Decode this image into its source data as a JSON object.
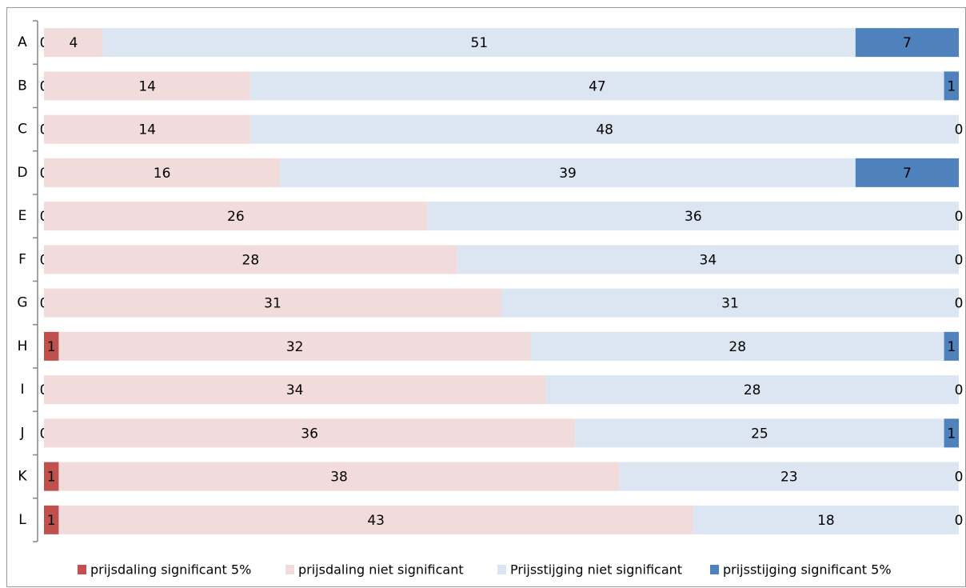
{
  "chart_data": {
    "type": "stacked-bar-horizontal",
    "categories": [
      "A",
      "B",
      "C",
      "D",
      "E",
      "F",
      "G",
      "H",
      "I",
      "J",
      "K",
      "L"
    ],
    "series": [
      {
        "name": "prijsdaling significant 5%",
        "color": "#c0504d",
        "values": [
          0,
          0,
          0,
          0,
          0,
          0,
          0,
          1,
          0,
          0,
          1,
          1
        ]
      },
      {
        "name": "prijsdaling niet significant",
        "color": "#f2dcdb",
        "values": [
          4,
          14,
          14,
          16,
          26,
          28,
          31,
          32,
          34,
          36,
          38,
          43
        ]
      },
      {
        "name": "Prijsstijging niet significant",
        "color": "#dce6f2",
        "values": [
          51,
          47,
          48,
          39,
          36,
          34,
          31,
          28,
          28,
          25,
          23,
          18
        ]
      },
      {
        "name": "prijsstijging significant 5%",
        "color": "#4f81bd",
        "values": [
          7,
          1,
          0,
          7,
          0,
          0,
          0,
          1,
          0,
          1,
          0,
          0
        ]
      }
    ],
    "xlim": [
      0,
      62
    ],
    "legend": "bottom"
  }
}
